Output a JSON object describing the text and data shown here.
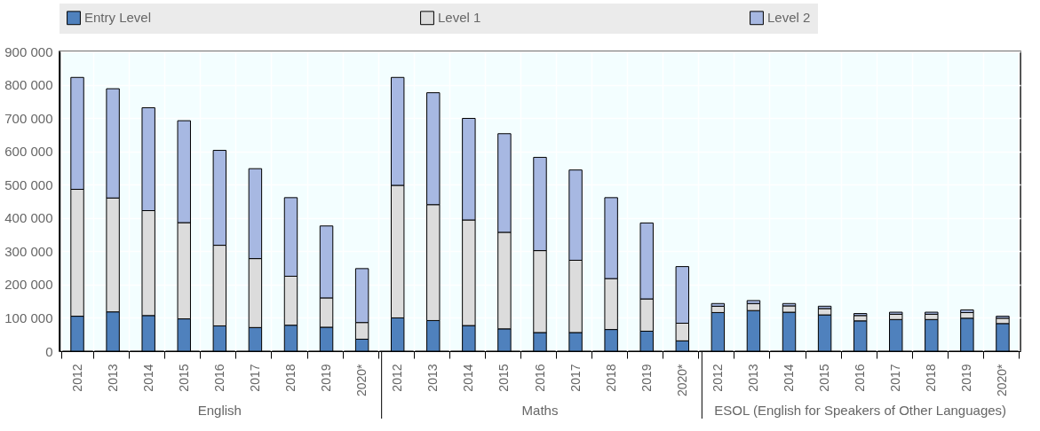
{
  "chart_data": {
    "type": "bar",
    "stacked": true,
    "legend": "top",
    "grid": true,
    "categories": [
      "2012",
      "2013",
      "2014",
      "2015",
      "2016",
      "2017",
      "2018",
      "2019",
      "2020*",
      "2012",
      "2013",
      "2014",
      "2015",
      "2016",
      "2017",
      "2018",
      "2019",
      "2020*",
      "2012",
      "2013",
      "2014",
      "2015",
      "2016",
      "2017",
      "2018",
      "2019",
      "2020*"
    ],
    "series": [
      {
        "name": "Entry Level",
        "color": "#4f81bd",
        "values": [
          105000,
          118000,
          107000,
          97000,
          76000,
          71000,
          78000,
          72000,
          36000,
          100000,
          92000,
          77000,
          67000,
          56000,
          56000,
          65000,
          60000,
          31000,
          116000,
          122000,
          117000,
          109000,
          91000,
          95000,
          95000,
          99000,
          83000
        ]
      },
      {
        "name": "Level 1",
        "color": "#dcdcdc",
        "values": [
          381000,
          342000,
          315000,
          289000,
          242000,
          207000,
          147000,
          88000,
          50000,
          398000,
          348000,
          317000,
          290000,
          246000,
          217000,
          153000,
          97000,
          53000,
          19000,
          21000,
          19000,
          19000,
          16000,
          16000,
          16000,
          17000,
          16000
        ]
      },
      {
        "name": "Level 2",
        "color": "#a7b8e2",
        "values": [
          336000,
          328000,
          309000,
          306000,
          285000,
          270000,
          236000,
          216000,
          162000,
          324000,
          336000,
          305000,
          296000,
          280000,
          271000,
          243000,
          228000,
          170000,
          8000,
          9000,
          7000,
          7000,
          6000,
          6000,
          6000,
          8000,
          6000
        ]
      }
    ],
    "ylim": [
      0,
      900000
    ],
    "yticks": [
      {
        "value": 0,
        "label": "0"
      },
      {
        "value": 100000,
        "label": "100 000"
      },
      {
        "value": 200000,
        "label": "200 000"
      },
      {
        "value": 300000,
        "label": "300 000"
      },
      {
        "value": 400000,
        "label": "400 000"
      },
      {
        "value": 500000,
        "label": "500 000"
      },
      {
        "value": 600000,
        "label": "600 000"
      },
      {
        "value": 700000,
        "label": "700 000"
      },
      {
        "value": 800000,
        "label": "800 000"
      },
      {
        "value": 900000,
        "label": "900 000"
      }
    ],
    "annotations": [
      "English",
      "Maths",
      "ESOL (English for Speakers of Other Languages)"
    ]
  }
}
